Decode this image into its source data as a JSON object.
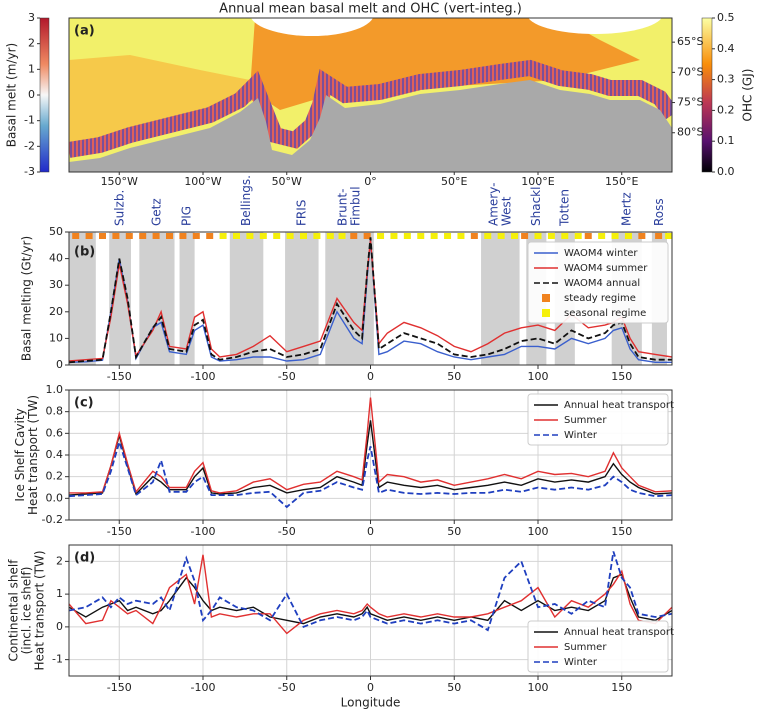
{
  "chart_data": [
    {
      "type": "map",
      "title": "Annual mean basal melt and OHC (vert-integ.)",
      "panel_label": "(a)",
      "xlim": [
        -180,
        180
      ],
      "xticks": [
        {
          "value": -150,
          "label": "150°W"
        },
        {
          "value": -100,
          "label": "100°W"
        },
        {
          "value": -50,
          "label": "50°W"
        },
        {
          "value": 0,
          "label": "0°"
        },
        {
          "value": 50,
          "label": "50°E"
        },
        {
          "value": 100,
          "label": "100°E"
        },
        {
          "value": 150,
          "label": "150°E"
        }
      ],
      "ylim": [
        -86.5,
        -61
      ],
      "yticks": [
        {
          "value": -65,
          "label": "65°S"
        },
        {
          "value": -70,
          "label": "70°S"
        },
        {
          "value": -75,
          "label": "75°S"
        },
        {
          "value": -80,
          "label": "80°S"
        }
      ],
      "colorbar_melt": {
        "label": "Basal melt (m/yr)",
        "lim": [
          -3,
          3
        ],
        "ticks": [
          3,
          2,
          1,
          0,
          -1,
          -2,
          -3
        ]
      },
      "colorbar_ohc": {
        "label": "OHC (GJ)",
        "lim": [
          0,
          0.5
        ],
        "ticks": [
          {
            "value": 0,
            "label": "0.0"
          },
          0.1,
          0.2,
          0.3,
          0.4,
          0.5
        ]
      }
    },
    {
      "type": "line",
      "panel_label": "(b)",
      "ylabel": [
        "Basal melting (Gt/yr)"
      ],
      "legend": "upper right",
      "grid": false,
      "xlim": [
        -180,
        180
      ],
      "xticks": [
        -150,
        -100,
        -50,
        0,
        50,
        100,
        150
      ],
      "ylim": [
        0,
        50
      ],
      "yticks": [
        0,
        10,
        20,
        30,
        40,
        50
      ],
      "regions": [
        {
          "label": null,
          "range": [
            -180,
            -164
          ]
        },
        {
          "label": [
            "Sulzb."
          ],
          "range": [
            -156,
            -143
          ]
        },
        {
          "label": [
            "Getz"
          ],
          "range": [
            -138,
            -117
          ]
        },
        {
          "label": [
            "PIG"
          ],
          "range": [
            -114,
            -105
          ]
        },
        {
          "label": [
            "Bellings."
          ],
          "range": [
            -84,
            -64
          ]
        },
        {
          "label": [
            "FRIS"
          ],
          "range": [
            -51,
            -31
          ]
        },
        {
          "label": [
            "Brunt-",
            "Fimbul"
          ],
          "range": [
            -27,
            2
          ]
        },
        {
          "label": [
            "Amery-",
            "West"
          ],
          "range": [
            66,
            89
          ]
        },
        {
          "label": [
            "Shackl."
          ],
          "range": [
            93,
            105
          ]
        },
        {
          "label": [
            "Totten"
          ],
          "range": [
            110,
            122
          ]
        },
        {
          "label": [
            "Mertz"
          ],
          "range": [
            144,
            162
          ]
        },
        {
          "label": [
            "Ross"
          ],
          "range": [
            168,
            177
          ]
        }
      ],
      "x": [
        -180,
        -170,
        -160,
        -155,
        -150,
        -145,
        -140,
        -130,
        -125,
        -120,
        -110,
        -105,
        -100,
        -95,
        -90,
        -80,
        -70,
        -60,
        -50,
        -40,
        -30,
        -20,
        -10,
        -5,
        -2,
        0,
        5,
        10,
        20,
        30,
        40,
        50,
        60,
        70,
        80,
        90,
        100,
        110,
        120,
        130,
        140,
        145,
        150,
        155,
        160,
        170,
        180
      ],
      "series": [
        {
          "name": "WAOM4 winter",
          "color": "#3a5fcd",
          "linestyle": "solid",
          "values": [
            1,
            1.2,
            1.8,
            20,
            40,
            24,
            2.5,
            14,
            16,
            5,
            4,
            13,
            15,
            3,
            1.5,
            2,
            3,
            3,
            1.5,
            2,
            4,
            20,
            10,
            8,
            33,
            47,
            4,
            5,
            9,
            8,
            5,
            3,
            2,
            3,
            4,
            7,
            7,
            6,
            10,
            8,
            10,
            13,
            14,
            6,
            2,
            1,
            1
          ]
        },
        {
          "name": "WAOM4 summer",
          "color": "#e03030",
          "linestyle": "solid",
          "values": [
            1.5,
            2,
            2.5,
            18,
            38,
            23,
            3.5,
            13,
            20,
            7,
            6,
            18,
            20,
            6,
            3,
            4,
            7,
            11,
            5,
            7,
            9,
            25,
            16,
            13,
            35,
            47,
            8,
            12,
            16,
            14,
            11,
            7,
            5,
            8,
            12,
            14,
            15,
            13,
            19,
            14,
            15,
            16,
            18,
            10,
            5,
            4,
            3
          ]
        },
        {
          "name": "WAOM4 annual",
          "color": "#111111",
          "linestyle": "dashed",
          "values": [
            1,
            1.5,
            2,
            20,
            40,
            25,
            3,
            14,
            18,
            6,
            5,
            15,
            17,
            4,
            2,
            3,
            5,
            6,
            3,
            4,
            6,
            23,
            13,
            10,
            35,
            48,
            6,
            8,
            12,
            10,
            8,
            4,
            3,
            4,
            6,
            9,
            10,
            8,
            13,
            10,
            12,
            15,
            16,
            8,
            3,
            2,
            2
          ]
        }
      ],
      "regimes": [
        {
          "name": "steady regime",
          "color": "#f0821e",
          "x": [
            -176,
            -168,
            -160,
            -152,
            -144,
            -136,
            -128,
            -120,
            -112,
            -104,
            -96,
            -10,
            -2,
            62,
            92,
            130,
            162,
            172
          ]
        },
        {
          "name": "seasonal regime",
          "color": "#f5f00a",
          "x": [
            -88,
            -80,
            -72,
            -64,
            -56,
            -48,
            -40,
            -32,
            -24,
            -17,
            6,
            14,
            22,
            30,
            38,
            46,
            54,
            70,
            78,
            86,
            100,
            108,
            116,
            124,
            138,
            146,
            154,
            178
          ]
        }
      ]
    },
    {
      "type": "line",
      "panel_label": "(c)",
      "ylabel": [
        "Ice Shelf Cavity",
        "Heat transport (TW)"
      ],
      "legend": "upper right",
      "grid": true,
      "xlim": [
        -180,
        180
      ],
      "xticks": [
        -150,
        -100,
        -50,
        0,
        50,
        100,
        150
      ],
      "ylim": [
        -0.2,
        1.0
      ],
      "yticks": [
        -0.2,
        {
          "value": 0,
          "label": "0.0"
        },
        0.2,
        0.4,
        0.6,
        0.8,
        {
          "value": 1,
          "label": "1.0"
        }
      ],
      "x": [
        -180,
        -170,
        -160,
        -155,
        -150,
        -145,
        -140,
        -130,
        -125,
        -120,
        -110,
        -105,
        -100,
        -95,
        -90,
        -80,
        -70,
        -60,
        -50,
        -40,
        -30,
        -20,
        -10,
        -5,
        -2,
        0,
        5,
        10,
        20,
        30,
        40,
        50,
        60,
        70,
        80,
        90,
        100,
        110,
        120,
        130,
        140,
        145,
        150,
        155,
        160,
        170,
        180
      ],
      "series": [
        {
          "name": "Annual heat transport",
          "color": "#111111",
          "linestyle": "solid",
          "values": [
            0.03,
            0.04,
            0.05,
            0.3,
            0.58,
            0.3,
            0.04,
            0.2,
            0.15,
            0.08,
            0.08,
            0.2,
            0.28,
            0.05,
            0.04,
            0.05,
            0.1,
            0.12,
            0.05,
            0.08,
            0.1,
            0.2,
            0.15,
            0.12,
            0.5,
            0.72,
            0.1,
            0.15,
            0.12,
            0.1,
            0.12,
            0.08,
            0.1,
            0.12,
            0.15,
            0.12,
            0.18,
            0.15,
            0.17,
            0.15,
            0.2,
            0.32,
            0.22,
            0.15,
            0.1,
            0.04,
            0.05
          ]
        },
        {
          "name": "Summer",
          "color": "#e03030",
          "linestyle": "solid",
          "values": [
            0.05,
            0.05,
            0.06,
            0.3,
            0.6,
            0.32,
            0.06,
            0.25,
            0.2,
            0.1,
            0.1,
            0.25,
            0.33,
            0.07,
            0.05,
            0.07,
            0.15,
            0.18,
            0.08,
            0.13,
            0.15,
            0.25,
            0.2,
            0.17,
            0.6,
            0.93,
            0.15,
            0.22,
            0.2,
            0.15,
            0.17,
            0.12,
            0.15,
            0.18,
            0.22,
            0.18,
            0.25,
            0.22,
            0.23,
            0.2,
            0.25,
            0.42,
            0.28,
            0.2,
            0.12,
            0.06,
            0.07
          ]
        },
        {
          "name": "Winter",
          "color": "#1f3fbf",
          "linestyle": "dashed",
          "values": [
            0.02,
            0.03,
            0.04,
            0.25,
            0.52,
            0.28,
            0.03,
            0.15,
            0.35,
            0.06,
            0.06,
            0.15,
            0.2,
            0.03,
            0.03,
            0.03,
            0.05,
            0.06,
            -0.08,
            0.05,
            0.07,
            0.15,
            0.1,
            0.08,
            0.35,
            0.48,
            0.05,
            0.08,
            0.05,
            0.04,
            0.05,
            0.04,
            0.05,
            0.05,
            0.08,
            0.06,
            0.1,
            0.08,
            0.1,
            0.08,
            0.12,
            0.2,
            0.15,
            0.08,
            0.05,
            0.02,
            0.03
          ]
        }
      ]
    },
    {
      "type": "line",
      "panel_label": "(d)",
      "ylabel": [
        "Continental shelf",
        "(incl. ice shelf)",
        "Heat transport (TW)"
      ],
      "xlabel": "Longitude",
      "legend": "lower right",
      "grid": true,
      "xlim": [
        -180,
        180
      ],
      "xticks": [
        -150,
        -100,
        -50,
        0,
        50,
        100,
        150
      ],
      "ylim": [
        -1.5,
        2.5
      ],
      "yticks": [
        -1,
        0,
        1,
        2
      ],
      "x": [
        -180,
        -170,
        -160,
        -155,
        -150,
        -145,
        -140,
        -130,
        -125,
        -120,
        -110,
        -105,
        -100,
        -95,
        -90,
        -80,
        -70,
        -60,
        -50,
        -40,
        -30,
        -20,
        -10,
        -5,
        -2,
        0,
        5,
        10,
        20,
        30,
        40,
        50,
        60,
        70,
        80,
        90,
        100,
        110,
        120,
        130,
        140,
        145,
        150,
        155,
        160,
        170,
        180
      ],
      "series": [
        {
          "name": "Annual heat transport",
          "color": "#111111",
          "linestyle": "solid",
          "values": [
            0.6,
            0.3,
            0.6,
            0.7,
            0.8,
            0.5,
            0.6,
            0.4,
            0.5,
            0.8,
            1.5,
            1.2,
            0.8,
            0.5,
            0.6,
            0.5,
            0.6,
            0.3,
            0.2,
            0.1,
            0.3,
            0.4,
            0.3,
            0.4,
            0.6,
            0.4,
            0.3,
            0.2,
            0.3,
            0.2,
            0.3,
            0.2,
            0.3,
            0.2,
            0.8,
            0.5,
            0.8,
            0.5,
            0.6,
            0.5,
            0.8,
            1.5,
            1.6,
            0.9,
            0.3,
            0.2,
            0.5
          ]
        },
        {
          "name": "Summer",
          "color": "#e03030",
          "linestyle": "solid",
          "values": [
            0.7,
            0.1,
            0.2,
            0.8,
            0.6,
            0.4,
            0.5,
            0.1,
            0.6,
            1.2,
            1.6,
            0.7,
            2.2,
            0.3,
            0.4,
            0.3,
            0.4,
            0.4,
            -0.2,
            0.2,
            0.4,
            0.5,
            0.4,
            0.5,
            0.7,
            0.6,
            0.4,
            0.3,
            0.4,
            0.3,
            0.4,
            0.3,
            0.3,
            0.4,
            0.6,
            0.8,
            1.2,
            0.3,
            0.8,
            0.6,
            1.0,
            1.3,
            1.7,
            0.7,
            0.2,
            0.1,
            0.6
          ]
        },
        {
          "name": "Winter",
          "color": "#1f3fbf",
          "linestyle": "dashed",
          "values": [
            0.5,
            0.6,
            0.9,
            0.6,
            0.9,
            0.7,
            0.8,
            0.7,
            0.9,
            0.5,
            2.1,
            1.4,
            0.2,
            0.5,
            0.9,
            0.6,
            0.5,
            0.2,
            1.0,
            0.0,
            0.2,
            0.3,
            0.2,
            0.3,
            0.5,
            0.3,
            0.2,
            0.1,
            0.2,
            0.1,
            0.2,
            0.1,
            0.2,
            -0.1,
            1.5,
            2.0,
            0.6,
            0.7,
            0.4,
            0.8,
            0.6,
            2.3,
            1.5,
            1.2,
            0.4,
            0.3,
            0.4
          ]
        }
      ]
    }
  ]
}
